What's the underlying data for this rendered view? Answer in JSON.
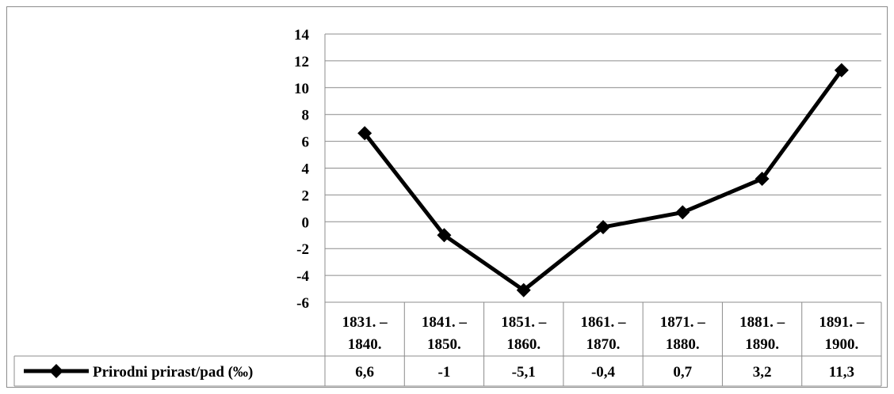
{
  "chart_data": {
    "type": "line",
    "categories": [
      [
        "1831. –",
        "1840."
      ],
      [
        "1841. –",
        "1850."
      ],
      [
        "1851. –",
        "1860."
      ],
      [
        "1861. –",
        "1870."
      ],
      [
        "1871. –",
        "1880."
      ],
      [
        "1881. –",
        "1890."
      ],
      [
        "1891. –",
        "1900."
      ]
    ],
    "series": [
      {
        "name": "Prirodni prirast/pad (‰)",
        "values": [
          6.6,
          -1,
          -5.1,
          -0.4,
          0.7,
          3.2,
          11.3
        ],
        "value_labels": [
          "6,6",
          "-1",
          "-5,1",
          "-0,4",
          "0,7",
          "3,2",
          "11,3"
        ],
        "color": "#000000",
        "marker": "diamond"
      }
    ],
    "ylim": [
      -6,
      14
    ],
    "yticks": [
      14,
      12,
      10,
      8,
      6,
      4,
      2,
      0,
      -2,
      -4,
      -6
    ],
    "ytick_labels": [
      "14",
      "12",
      "10",
      "8",
      "6",
      "4",
      "2",
      "0",
      "-2",
      "-4",
      "-6"
    ],
    "grid": true,
    "legend_placement": "bottom-left, within data table",
    "data_table": true
  }
}
